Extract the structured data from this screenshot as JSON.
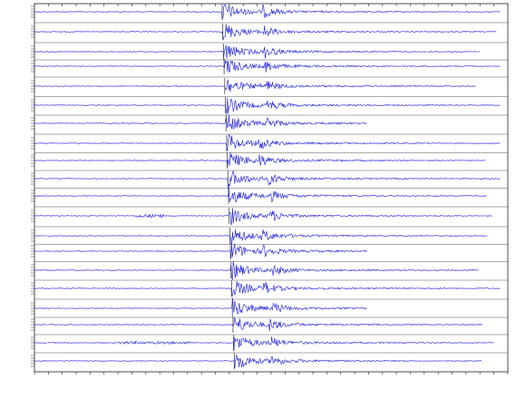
{
  "chart_data": {
    "type": "seismogram"
  }
}
